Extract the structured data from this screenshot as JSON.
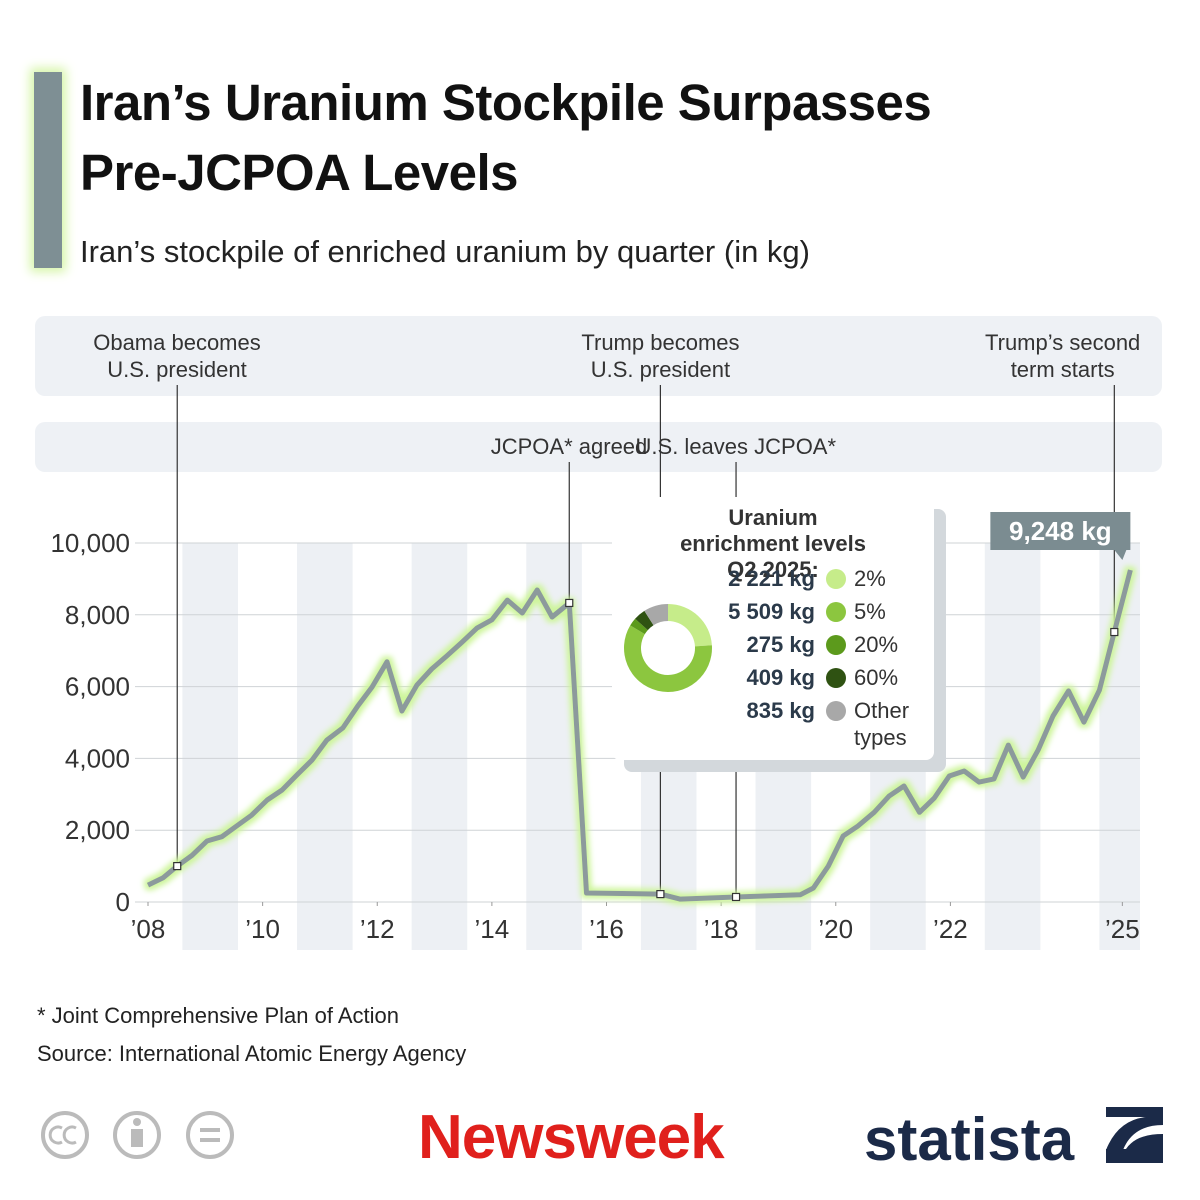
{
  "chart_data": [
    {
      "type": "line",
      "title": "Iran’s Uranium Stockpile Surpasses Pre-JCPOA Levels",
      "subtitle": "Iran’s stockpile of enriched uranium by quarter (in kg)",
      "footnote": "* Joint Comprehensive Plan of Action",
      "source": "Source: International Atomic Energy Agency",
      "x": [
        2008.0,
        2008.26,
        2008.51,
        2008.77,
        2009.03,
        2009.29,
        2009.55,
        2009.81,
        2010.08,
        2010.34,
        2010.6,
        2010.86,
        2011.12,
        2011.4,
        2011.66,
        2011.91,
        2012.17,
        2012.43,
        2012.69,
        2012.95,
        2013.21,
        2013.48,
        2013.74,
        2014.0,
        2014.27,
        2014.53,
        2014.79,
        2015.05,
        2015.35,
        2015.65,
        2016.94,
        2017.28,
        2018.26,
        2019.38,
        2019.61,
        2019.87,
        2020.13,
        2020.39,
        2020.67,
        2020.93,
        2021.19,
        2021.46,
        2021.72,
        2021.98,
        2022.24,
        2022.5,
        2022.76,
        2023.01,
        2023.27,
        2023.53,
        2023.79,
        2024.06,
        2024.33,
        2024.6,
        2024.86,
        2025.14
      ],
      "values": [
        470,
        670,
        1000,
        1300,
        1700,
        1820,
        2120,
        2420,
        2840,
        3120,
        3540,
        3950,
        4510,
        4850,
        5460,
        5990,
        6690,
        5320,
        6040,
        6490,
        6850,
        7240,
        7630,
        7860,
        8410,
        8050,
        8690,
        7940,
        8330,
        250,
        220,
        80,
        140,
        200,
        390,
        1000,
        1840,
        2120,
        2500,
        2950,
        3230,
        2500,
        2900,
        3510,
        3650,
        3340,
        3430,
        4370,
        3480,
        4230,
        5180,
        5880,
        5010,
        5900,
        7520,
        9248
      ],
      "value_labels": [
        null,
        null,
        null,
        null,
        null,
        null,
        null,
        null,
        null,
        null,
        null,
        null,
        null,
        null,
        null,
        null,
        null,
        null,
        null,
        null,
        null,
        null,
        null,
        null,
        null,
        null,
        null,
        null,
        null,
        null,
        null,
        null,
        null,
        null,
        null,
        null,
        null,
        null,
        null,
        null,
        null,
        null,
        null,
        null,
        null,
        null,
        null,
        null,
        null,
        null,
        null,
        null,
        null,
        null,
        null,
        "9,248 kg"
      ],
      "color": "#8c9a9c",
      "xlim": [
        2008,
        2025.5
      ],
      "xticks": [
        {
          "value": 2008,
          "label": "’08"
        },
        {
          "value": 2010,
          "label": "’10"
        },
        {
          "value": 2012,
          "label": "’12"
        },
        {
          "value": 2014,
          "label": "’14"
        },
        {
          "value": 2016,
          "label": "’16"
        },
        {
          "value": 2018,
          "label": "’18"
        },
        {
          "value": 2020,
          "label": "’20"
        },
        {
          "value": 2022,
          "label": "’22"
        },
        {
          "value": 2025,
          "label": "’25"
        }
      ],
      "ylim": [
        0,
        10000
      ],
      "yticks": [
        0,
        {
          "value": 2000,
          "label": "2,000"
        },
        {
          "value": 4000,
          "label": "4,000"
        },
        {
          "value": 6000,
          "label": "6,000"
        },
        {
          "value": 8000,
          "label": "8,000"
        },
        {
          "value": 10000,
          "label": "10,000"
        }
      ],
      "grid": true,
      "presidency_events": [
        {
          "text": "Obama becomes\nU.S. president",
          "x": 2008.51
        },
        {
          "text": "Trump becomes\nU.S. president",
          "x": 2016.94
        },
        {
          "text": "Trump’s second\nterm starts",
          "x": 2024.86
        }
      ],
      "deal_events": [
        {
          "text": "JCPOA* agreed",
          "x": 2015.35
        },
        {
          "text": "U.S. leaves JCPOA*",
          "x": 2018.26
        }
      ]
    },
    {
      "type": "pie",
      "title": "Uranium enrichment levels Q2 2025:",
      "categories": [
        "2%",
        "5%",
        "20%",
        "60%",
        "Other types"
      ],
      "values": [
        2221,
        5509,
        275,
        409,
        835
      ],
      "value_labels": [
        "2 221 kg",
        "5 509 kg",
        "275 kg",
        "409 kg",
        "835 kg"
      ],
      "colors": [
        "#c6ec8a",
        "#8cc63f",
        "#5c9a1c",
        "#2f5212",
        "#a8a8a8"
      ]
    }
  ],
  "brands": [
    "Newsweek",
    "statista"
  ]
}
